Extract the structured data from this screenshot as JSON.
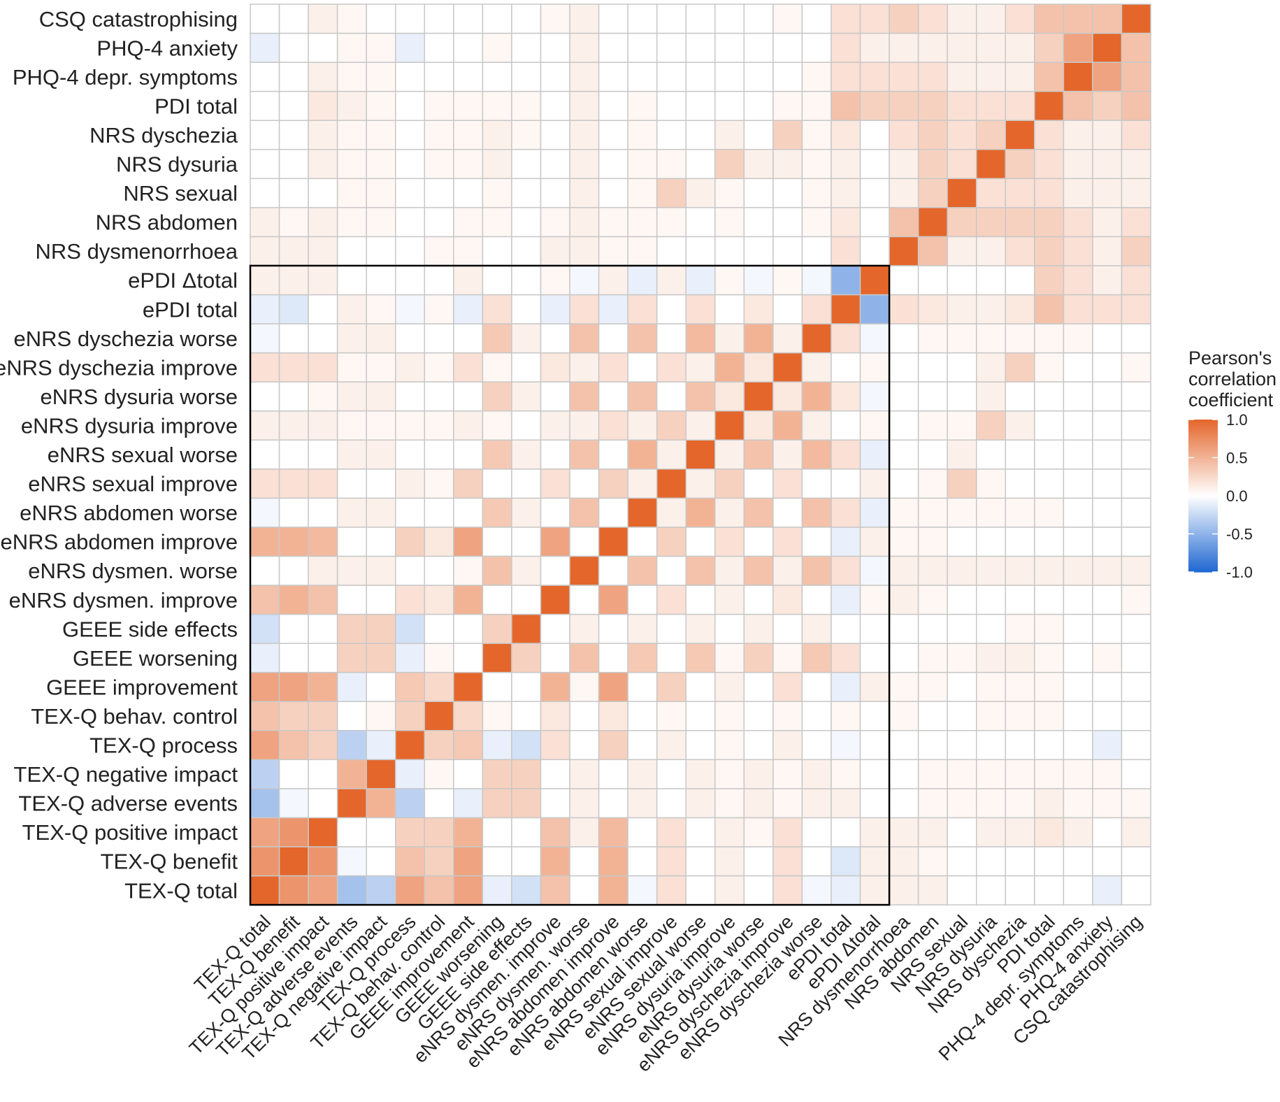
{
  "chart_data": {
    "type": "heatmap",
    "variables": [
      "TEX-Q total",
      "TEX-Q benefit",
      "TEX-Q positive impact",
      "TEX-Q adverse events",
      "TEX-Q negative impact",
      "TEX-Q process",
      "TEX-Q behav. control",
      "GEEE improvement",
      "GEEE worsening",
      "GEEE side effects",
      "eNRS dysmen. improve",
      "eNRS dysmen. worse",
      "eNRS abdomen improve",
      "eNRS abdomen worse",
      "eNRS sexual improve",
      "eNRS sexual worse",
      "eNRS dysuria improve",
      "eNRS dysuria worse",
      "eNRS dyschezia improve",
      "eNRS dyschezia worse",
      "ePDI total",
      "ePDI Δtotal",
      "NRS dysmenorrhoea",
      "NRS abdomen",
      "NRS sexual",
      "NRS dysuria",
      "NRS dyschezia",
      "PDI total",
      "PHQ-4 depr. symptoms",
      "PHQ-4 anxiety",
      "CSQ catastrophising"
    ],
    "x_order": "left-to-right as listed",
    "y_order": "bottom-to-top as listed",
    "highlight_box": {
      "from": "TEX-Q total",
      "to": "ePDI Δtotal"
    },
    "matrix_note": "symmetric Pearson correlation matrix; entries estimated from cell colours; diagonal = 1.0",
    "matrix": [
      [
        1.0,
        0.7,
        0.6,
        -0.4,
        -0.3,
        0.6,
        0.4,
        0.6,
        -0.1,
        -0.2,
        0.4,
        0.0,
        0.5,
        -0.05,
        0.2,
        0.0,
        0.1,
        0.0,
        0.2,
        -0.05,
        -0.1,
        0.1,
        0.1,
        0.1,
        0.0,
        0.0,
        0.0,
        0.0,
        0.0,
        -0.1,
        0.0
      ],
      [
        0.7,
        1.0,
        0.7,
        -0.05,
        0.0,
        0.4,
        0.3,
        0.6,
        0.0,
        0.0,
        0.5,
        0.0,
        0.5,
        0.0,
        0.2,
        0.0,
        0.1,
        0.0,
        0.2,
        0.0,
        -0.15,
        0.1,
        0.1,
        0.05,
        0.0,
        0.0,
        0.0,
        0.0,
        0.0,
        0.0,
        0.0
      ],
      [
        0.6,
        0.7,
        1.0,
        0.0,
        0.0,
        0.3,
        0.3,
        0.5,
        0.0,
        0.0,
        0.4,
        0.1,
        0.45,
        0.0,
        0.2,
        0.0,
        0.1,
        0.05,
        0.2,
        0.0,
        0.0,
        0.1,
        0.1,
        0.1,
        0.0,
        0.1,
        0.1,
        0.15,
        0.1,
        0.0,
        0.1
      ],
      [
        -0.4,
        -0.05,
        0.0,
        1.0,
        0.5,
        -0.3,
        0.0,
        -0.1,
        0.3,
        0.3,
        0.0,
        0.1,
        0.0,
        0.1,
        0.0,
        0.1,
        0.05,
        0.1,
        0.05,
        0.1,
        0.1,
        0.0,
        0.0,
        0.05,
        0.05,
        0.05,
        0.05,
        0.1,
        0.05,
        0.05,
        0.05
      ],
      [
        -0.3,
        0.0,
        0.0,
        0.5,
        1.0,
        -0.1,
        0.05,
        0.0,
        0.3,
        0.3,
        0.0,
        0.1,
        0.0,
        0.1,
        0.0,
        0.1,
        0.05,
        0.1,
        0.05,
        0.1,
        0.05,
        0.0,
        0.0,
        0.05,
        0.05,
        0.05,
        0.05,
        0.05,
        0.05,
        0.05,
        0.0
      ],
      [
        0.6,
        0.4,
        0.3,
        -0.3,
        -0.1,
        1.0,
        0.3,
        0.35,
        -0.1,
        -0.2,
        0.2,
        0.0,
        0.3,
        0.0,
        0.1,
        0.0,
        0.05,
        0.0,
        0.1,
        0.0,
        -0.05,
        0.0,
        0.0,
        0.0,
        0.0,
        0.0,
        0.0,
        0.0,
        0.0,
        -0.1,
        0.0
      ],
      [
        0.4,
        0.3,
        0.3,
        0.0,
        0.05,
        0.3,
        1.0,
        0.25,
        0.05,
        0.0,
        0.15,
        0.0,
        0.15,
        0.0,
        0.05,
        0.0,
        0.05,
        0.0,
        0.05,
        0.0,
        0.05,
        0.0,
        0.05,
        0.0,
        0.0,
        0.05,
        0.05,
        0.05,
        0.0,
        0.0,
        0.0
      ],
      [
        0.6,
        0.6,
        0.5,
        -0.1,
        0.0,
        0.35,
        0.25,
        1.0,
        0.0,
        0.0,
        0.5,
        0.05,
        0.6,
        0.0,
        0.3,
        0.0,
        0.1,
        0.0,
        0.2,
        0.0,
        -0.1,
        0.1,
        0.05,
        0.05,
        0.0,
        0.05,
        0.05,
        0.05,
        0.0,
        0.0,
        0.0
      ],
      [
        -0.1,
        0.0,
        0.0,
        0.3,
        0.3,
        -0.1,
        0.05,
        0.0,
        1.0,
        0.3,
        0.0,
        0.4,
        0.0,
        0.35,
        0.0,
        0.35,
        0.05,
        0.3,
        0.05,
        0.35,
        0.2,
        0.0,
        0.0,
        0.05,
        0.05,
        0.1,
        0.1,
        0.05,
        0.0,
        0.05,
        0.0
      ],
      [
        -0.2,
        0.0,
        0.0,
        0.3,
        0.3,
        -0.2,
        0.0,
        0.0,
        0.3,
        1.0,
        0.0,
        0.1,
        0.0,
        0.1,
        0.0,
        0.1,
        0.0,
        0.1,
        0.0,
        0.1,
        0.0,
        0.0,
        0.0,
        0.0,
        0.0,
        0.0,
        0.05,
        0.05,
        0.0,
        0.0,
        0.0
      ],
      [
        0.4,
        0.5,
        0.4,
        0.0,
        0.0,
        0.2,
        0.15,
        0.5,
        0.0,
        0.0,
        1.0,
        0.0,
        0.6,
        0.0,
        0.2,
        0.0,
        0.1,
        0.0,
        0.15,
        0.0,
        -0.1,
        0.05,
        0.1,
        0.05,
        0.0,
        0.0,
        0.0,
        0.0,
        0.0,
        0.0,
        0.05
      ],
      [
        0.0,
        0.0,
        0.1,
        0.1,
        0.1,
        0.0,
        0.0,
        0.05,
        0.4,
        0.1,
        0.0,
        1.0,
        0.0,
        0.4,
        0.0,
        0.4,
        0.1,
        0.4,
        0.1,
        0.4,
        0.2,
        -0.05,
        0.1,
        0.1,
        0.1,
        0.1,
        0.1,
        0.1,
        0.1,
        0.1,
        0.1
      ],
      [
        0.5,
        0.5,
        0.45,
        0.0,
        0.0,
        0.3,
        0.15,
        0.6,
        0.0,
        0.0,
        0.6,
        0.0,
        1.0,
        0.0,
        0.3,
        0.0,
        0.2,
        0.0,
        0.2,
        0.0,
        -0.1,
        0.1,
        0.05,
        0.05,
        0.0,
        0.0,
        0.0,
        0.0,
        0.0,
        0.0,
        0.0
      ],
      [
        -0.05,
        0.0,
        0.0,
        0.1,
        0.1,
        0.0,
        0.0,
        0.0,
        0.35,
        0.1,
        0.0,
        0.4,
        0.0,
        1.0,
        0.1,
        0.5,
        0.1,
        0.4,
        0.0,
        0.4,
        0.2,
        -0.1,
        0.05,
        0.05,
        0.05,
        0.05,
        0.05,
        0.05,
        0.0,
        0.0,
        0.0
      ],
      [
        0.2,
        0.2,
        0.2,
        0.0,
        0.0,
        0.1,
        0.05,
        0.3,
        0.0,
        0.0,
        0.2,
        0.0,
        0.3,
        0.1,
        1.0,
        0.1,
        0.3,
        0.0,
        0.2,
        0.0,
        0.0,
        0.1,
        0.0,
        0.05,
        0.3,
        0.05,
        0.0,
        0.0,
        0.0,
        0.0,
        0.0
      ],
      [
        0.0,
        0.0,
        0.0,
        0.1,
        0.1,
        0.0,
        0.0,
        0.0,
        0.35,
        0.1,
        0.0,
        0.4,
        0.0,
        0.5,
        0.1,
        1.0,
        0.1,
        0.4,
        0.1,
        0.45,
        0.2,
        -0.1,
        0.0,
        0.0,
        0.1,
        0.0,
        0.0,
        0.0,
        0.0,
        0.0,
        0.0
      ],
      [
        0.1,
        0.1,
        0.1,
        0.05,
        0.05,
        0.05,
        0.05,
        0.1,
        0.05,
        0.0,
        0.1,
        0.1,
        0.2,
        0.1,
        0.3,
        0.1,
        1.0,
        0.15,
        0.5,
        0.1,
        0.0,
        0.05,
        0.0,
        0.05,
        0.05,
        0.3,
        0.1,
        0.0,
        0.0,
        0.0,
        0.0
      ],
      [
        0.0,
        0.0,
        0.05,
        0.1,
        0.1,
        0.0,
        0.0,
        0.0,
        0.3,
        0.1,
        0.0,
        0.4,
        0.0,
        0.4,
        0.0,
        0.4,
        0.15,
        1.0,
        0.15,
        0.5,
        0.15,
        -0.05,
        0.0,
        0.0,
        0.0,
        0.1,
        0.0,
        0.0,
        0.0,
        0.0,
        0.0
      ],
      [
        0.2,
        0.2,
        0.2,
        0.05,
        0.05,
        0.1,
        0.05,
        0.2,
        0.05,
        0.0,
        0.15,
        0.1,
        0.2,
        0.0,
        0.2,
        0.1,
        0.5,
        0.15,
        1.0,
        0.1,
        0.0,
        0.05,
        0.0,
        0.0,
        0.0,
        0.1,
        0.3,
        0.05,
        0.0,
        0.0,
        0.05
      ],
      [
        -0.05,
        0.0,
        0.0,
        0.1,
        0.1,
        0.0,
        0.0,
        0.0,
        0.35,
        0.1,
        0.0,
        0.4,
        0.0,
        0.4,
        0.0,
        0.45,
        0.1,
        0.5,
        0.1,
        1.0,
        0.2,
        -0.05,
        0.0,
        0.05,
        0.05,
        0.05,
        0.05,
        0.05,
        0.05,
        0.0,
        0.0
      ],
      [
        -0.1,
        -0.15,
        0.0,
        0.1,
        0.05,
        -0.05,
        0.05,
        -0.1,
        0.2,
        0.0,
        -0.1,
        0.2,
        -0.1,
        0.2,
        0.0,
        0.2,
        0.0,
        0.15,
        0.0,
        0.2,
        1.0,
        -0.5,
        0.2,
        0.15,
        0.1,
        0.1,
        0.15,
        0.4,
        0.2,
        0.2,
        0.2
      ],
      [
        0.1,
        0.1,
        0.1,
        0.0,
        0.0,
        0.0,
        0.0,
        0.1,
        0.0,
        0.0,
        0.05,
        -0.05,
        0.1,
        -0.1,
        0.1,
        -0.1,
        0.05,
        -0.05,
        0.05,
        -0.05,
        -0.5,
        1.0,
        0.0,
        0.0,
        0.0,
        0.0,
        0.0,
        0.3,
        0.2,
        0.1,
        0.2
      ],
      [
        0.1,
        0.1,
        0.1,
        0.0,
        0.0,
        0.0,
        0.05,
        0.05,
        0.0,
        0.0,
        0.1,
        0.1,
        0.05,
        0.05,
        0.0,
        0.0,
        0.0,
        0.0,
        0.0,
        0.0,
        0.2,
        0.0,
        1.0,
        0.4,
        0.1,
        0.1,
        0.2,
        0.3,
        0.2,
        0.1,
        0.3
      ],
      [
        0.1,
        0.05,
        0.1,
        0.05,
        0.05,
        0.0,
        0.0,
        0.05,
        0.05,
        0.0,
        0.05,
        0.1,
        0.05,
        0.05,
        0.05,
        0.0,
        0.05,
        0.0,
        0.0,
        0.05,
        0.15,
        0.0,
        0.4,
        1.0,
        0.3,
        0.3,
        0.3,
        0.3,
        0.2,
        0.1,
        0.2
      ],
      [
        0.0,
        0.0,
        0.0,
        0.05,
        0.05,
        0.0,
        0.0,
        0.0,
        0.05,
        0.0,
        0.0,
        0.1,
        0.0,
        0.05,
        0.3,
        0.1,
        0.05,
        0.0,
        0.0,
        0.05,
        0.1,
        0.0,
        0.1,
        0.3,
        1.0,
        0.2,
        0.2,
        0.2,
        0.1,
        0.1,
        0.1
      ],
      [
        0.0,
        0.0,
        0.1,
        0.05,
        0.05,
        0.0,
        0.05,
        0.05,
        0.1,
        0.0,
        0.0,
        0.1,
        0.0,
        0.05,
        0.05,
        0.0,
        0.3,
        0.1,
        0.1,
        0.05,
        0.1,
        0.0,
        0.1,
        0.3,
        0.2,
        1.0,
        0.3,
        0.2,
        0.1,
        0.1,
        0.1
      ],
      [
        0.0,
        0.0,
        0.1,
        0.05,
        0.05,
        0.0,
        0.05,
        0.05,
        0.1,
        0.05,
        0.0,
        0.1,
        0.0,
        0.05,
        0.0,
        0.0,
        0.1,
        0.0,
        0.3,
        0.05,
        0.15,
        0.0,
        0.2,
        0.3,
        0.2,
        0.3,
        1.0,
        0.2,
        0.1,
        0.1,
        0.2
      ],
      [
        0.0,
        0.0,
        0.15,
        0.1,
        0.05,
        0.0,
        0.05,
        0.05,
        0.05,
        0.05,
        0.0,
        0.1,
        0.0,
        0.05,
        0.0,
        0.0,
        0.0,
        0.0,
        0.05,
        0.05,
        0.4,
        0.3,
        0.3,
        0.3,
        0.2,
        0.2,
        0.2,
        1.0,
        0.4,
        0.3,
        0.4
      ],
      [
        0.0,
        0.0,
        0.1,
        0.05,
        0.05,
        0.0,
        0.0,
        0.0,
        0.0,
        0.0,
        0.0,
        0.1,
        0.0,
        0.0,
        0.0,
        0.0,
        0.0,
        0.0,
        0.0,
        0.05,
        0.2,
        0.2,
        0.2,
        0.2,
        0.1,
        0.1,
        0.1,
        0.4,
        1.0,
        0.6,
        0.4
      ],
      [
        -0.1,
        0.0,
        0.0,
        0.05,
        0.05,
        -0.1,
        0.0,
        0.0,
        0.05,
        0.0,
        0.0,
        0.1,
        0.0,
        0.0,
        0.0,
        0.0,
        0.0,
        0.0,
        0.0,
        0.0,
        0.2,
        0.1,
        0.1,
        0.1,
        0.1,
        0.1,
        0.1,
        0.3,
        0.6,
        1.0,
        0.4
      ],
      [
        0.0,
        0.0,
        0.1,
        0.05,
        0.0,
        0.0,
        0.0,
        0.0,
        0.0,
        0.0,
        0.05,
        0.1,
        0.0,
        0.0,
        0.0,
        0.0,
        0.0,
        0.0,
        0.05,
        0.0,
        0.2,
        0.2,
        0.3,
        0.2,
        0.1,
        0.1,
        0.2,
        0.4,
        0.4,
        0.4,
        1.0
      ]
    ],
    "color_scale": {
      "low": "#1f67d2",
      "mid": "#ffffff",
      "high": "#e4662b",
      "limits": [
        -1.0,
        1.0
      ]
    },
    "legend": {
      "title_lines": [
        "Pearson's",
        "correlation",
        "coefficient"
      ],
      "ticks": [
        "1.0",
        "0.5",
        "0.0",
        "-0.5",
        "-1.0"
      ],
      "tick_values": [
        1.0,
        0.5,
        0.0,
        -0.5,
        -1.0
      ],
      "placement": "right"
    },
    "grid": true
  }
}
